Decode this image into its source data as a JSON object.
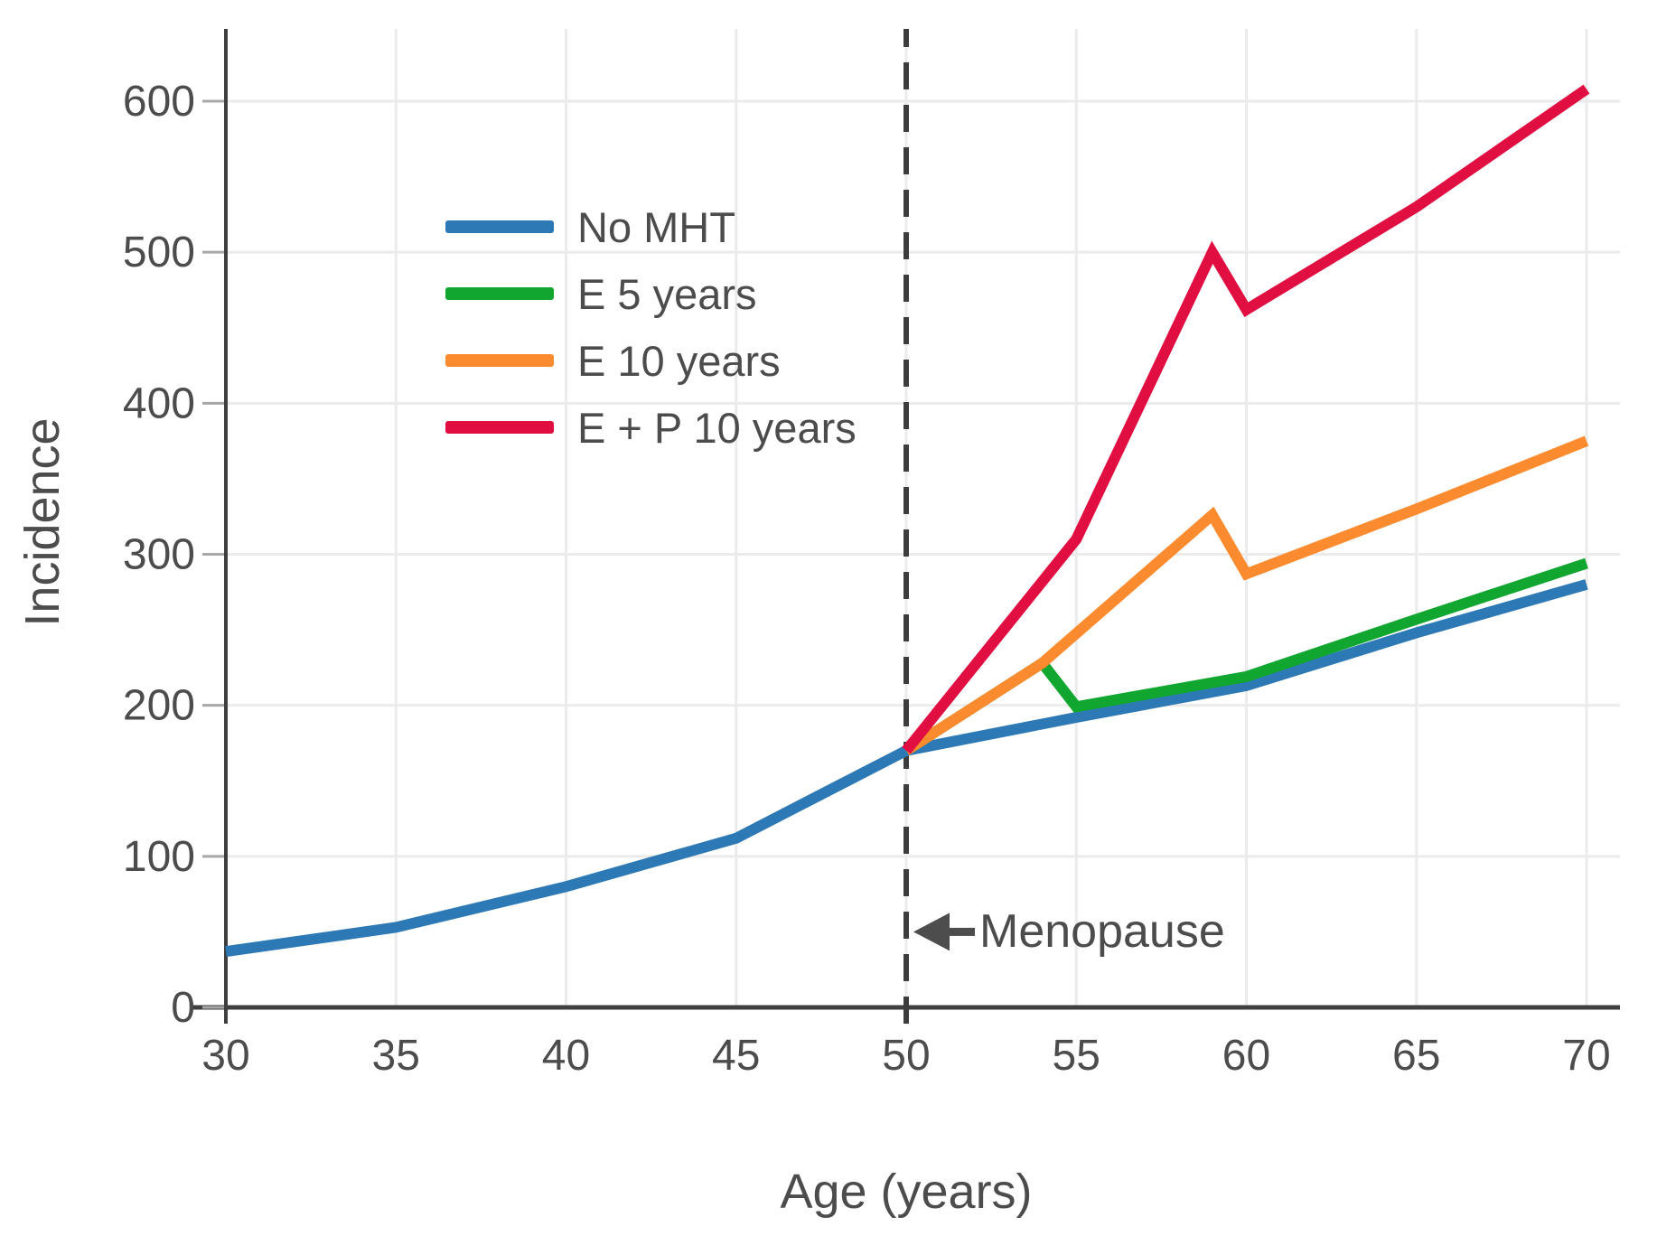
{
  "figure": {
    "background": "#ffffff",
    "text_color": "#4c4c4c",
    "grid_color": "#ebebeb",
    "axis_color": "#3f3f3f"
  },
  "chart_data": {
    "type": "line",
    "title": "",
    "xlabel": "Age (years)",
    "ylabel": "Incidence",
    "xlim": [
      30,
      71
    ],
    "ylim": [
      0,
      648
    ],
    "xticks": [
      30,
      35,
      40,
      45,
      50,
      55,
      60,
      65,
      70
    ],
    "yticks": [
      0,
      100,
      200,
      300,
      400,
      500,
      600
    ],
    "grid": true,
    "legend_position": "upper-left-inside",
    "series": [
      {
        "name": "No MHT",
        "color": "#2d79b5",
        "points": [
          [
            30,
            37
          ],
          [
            35,
            53
          ],
          [
            40,
            80
          ],
          [
            45,
            112
          ],
          [
            50,
            170
          ],
          [
            55,
            192
          ],
          [
            60,
            213
          ],
          [
            65,
            248
          ],
          [
            70,
            280
          ]
        ]
      },
      {
        "name": "E 5 years",
        "color": "#10a62f",
        "points": [
          [
            50,
            170
          ],
          [
            54,
            228
          ],
          [
            55,
            199
          ],
          [
            60,
            219
          ],
          [
            65,
            257
          ],
          [
            70,
            294
          ]
        ]
      },
      {
        "name": "E 10 years",
        "color": "#fc8b2f",
        "points": [
          [
            50,
            170
          ],
          [
            54,
            228
          ],
          [
            59,
            326
          ],
          [
            60,
            287
          ],
          [
            65,
            330
          ],
          [
            70,
            375
          ]
        ]
      },
      {
        "name": "E + P 10 years",
        "color": "#e00e41",
        "points": [
          [
            50,
            170
          ],
          [
            55,
            310
          ],
          [
            59,
            500
          ],
          [
            60,
            462
          ],
          [
            65,
            530
          ],
          [
            70,
            608
          ]
        ]
      }
    ],
    "reference_line": {
      "axis": "x",
      "value": 50,
      "style": "dashed",
      "color": "#3d3d3d"
    },
    "annotation": {
      "text": "Menopause",
      "arrow_points_to_x": 50,
      "y_value": 50,
      "color": "#4d4d4d"
    }
  }
}
